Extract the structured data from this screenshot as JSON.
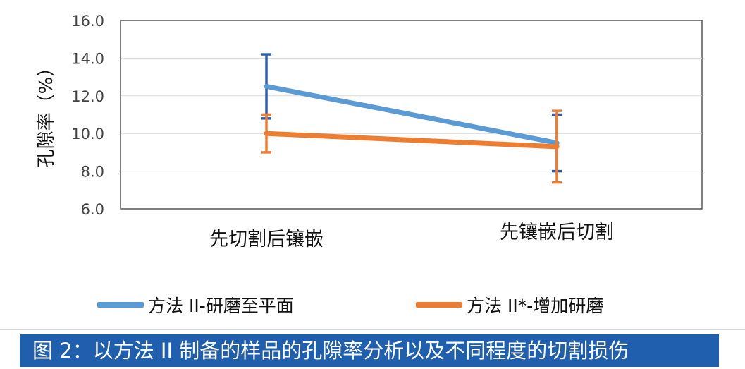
{
  "chart_data": {
    "type": "line",
    "categories": [
      "先切割后镶嵌",
      "先镶嵌后切割"
    ],
    "ylabel": "孔隙率（%）",
    "xlabel": "",
    "ylim": [
      6.0,
      16.0
    ],
    "yticks": [
      "6.0",
      "8.0",
      "10.0",
      "12.0",
      "14.0",
      "16.0"
    ],
    "grid": true,
    "legend_position": "bottom",
    "series": [
      {
        "name": "方法 II-研磨至平面",
        "color": "#5b9bd5",
        "errcolor": "#2f5fb3",
        "values": [
          12.5,
          9.5
        ],
        "err_low": [
          10.8,
          8.0
        ],
        "err_high": [
          14.2,
          11.0
        ]
      },
      {
        "name": "方法 II*-增加研磨",
        "color": "#ed7d31",
        "errcolor": "#ed7d31",
        "values": [
          10.0,
          9.3
        ],
        "err_low": [
          9.0,
          7.4
        ],
        "err_high": [
          11.0,
          11.2
        ]
      }
    ]
  },
  "caption": "图 2：以方法 II 制备的样品的孔隙率分析以及不同程度的切割损伤"
}
